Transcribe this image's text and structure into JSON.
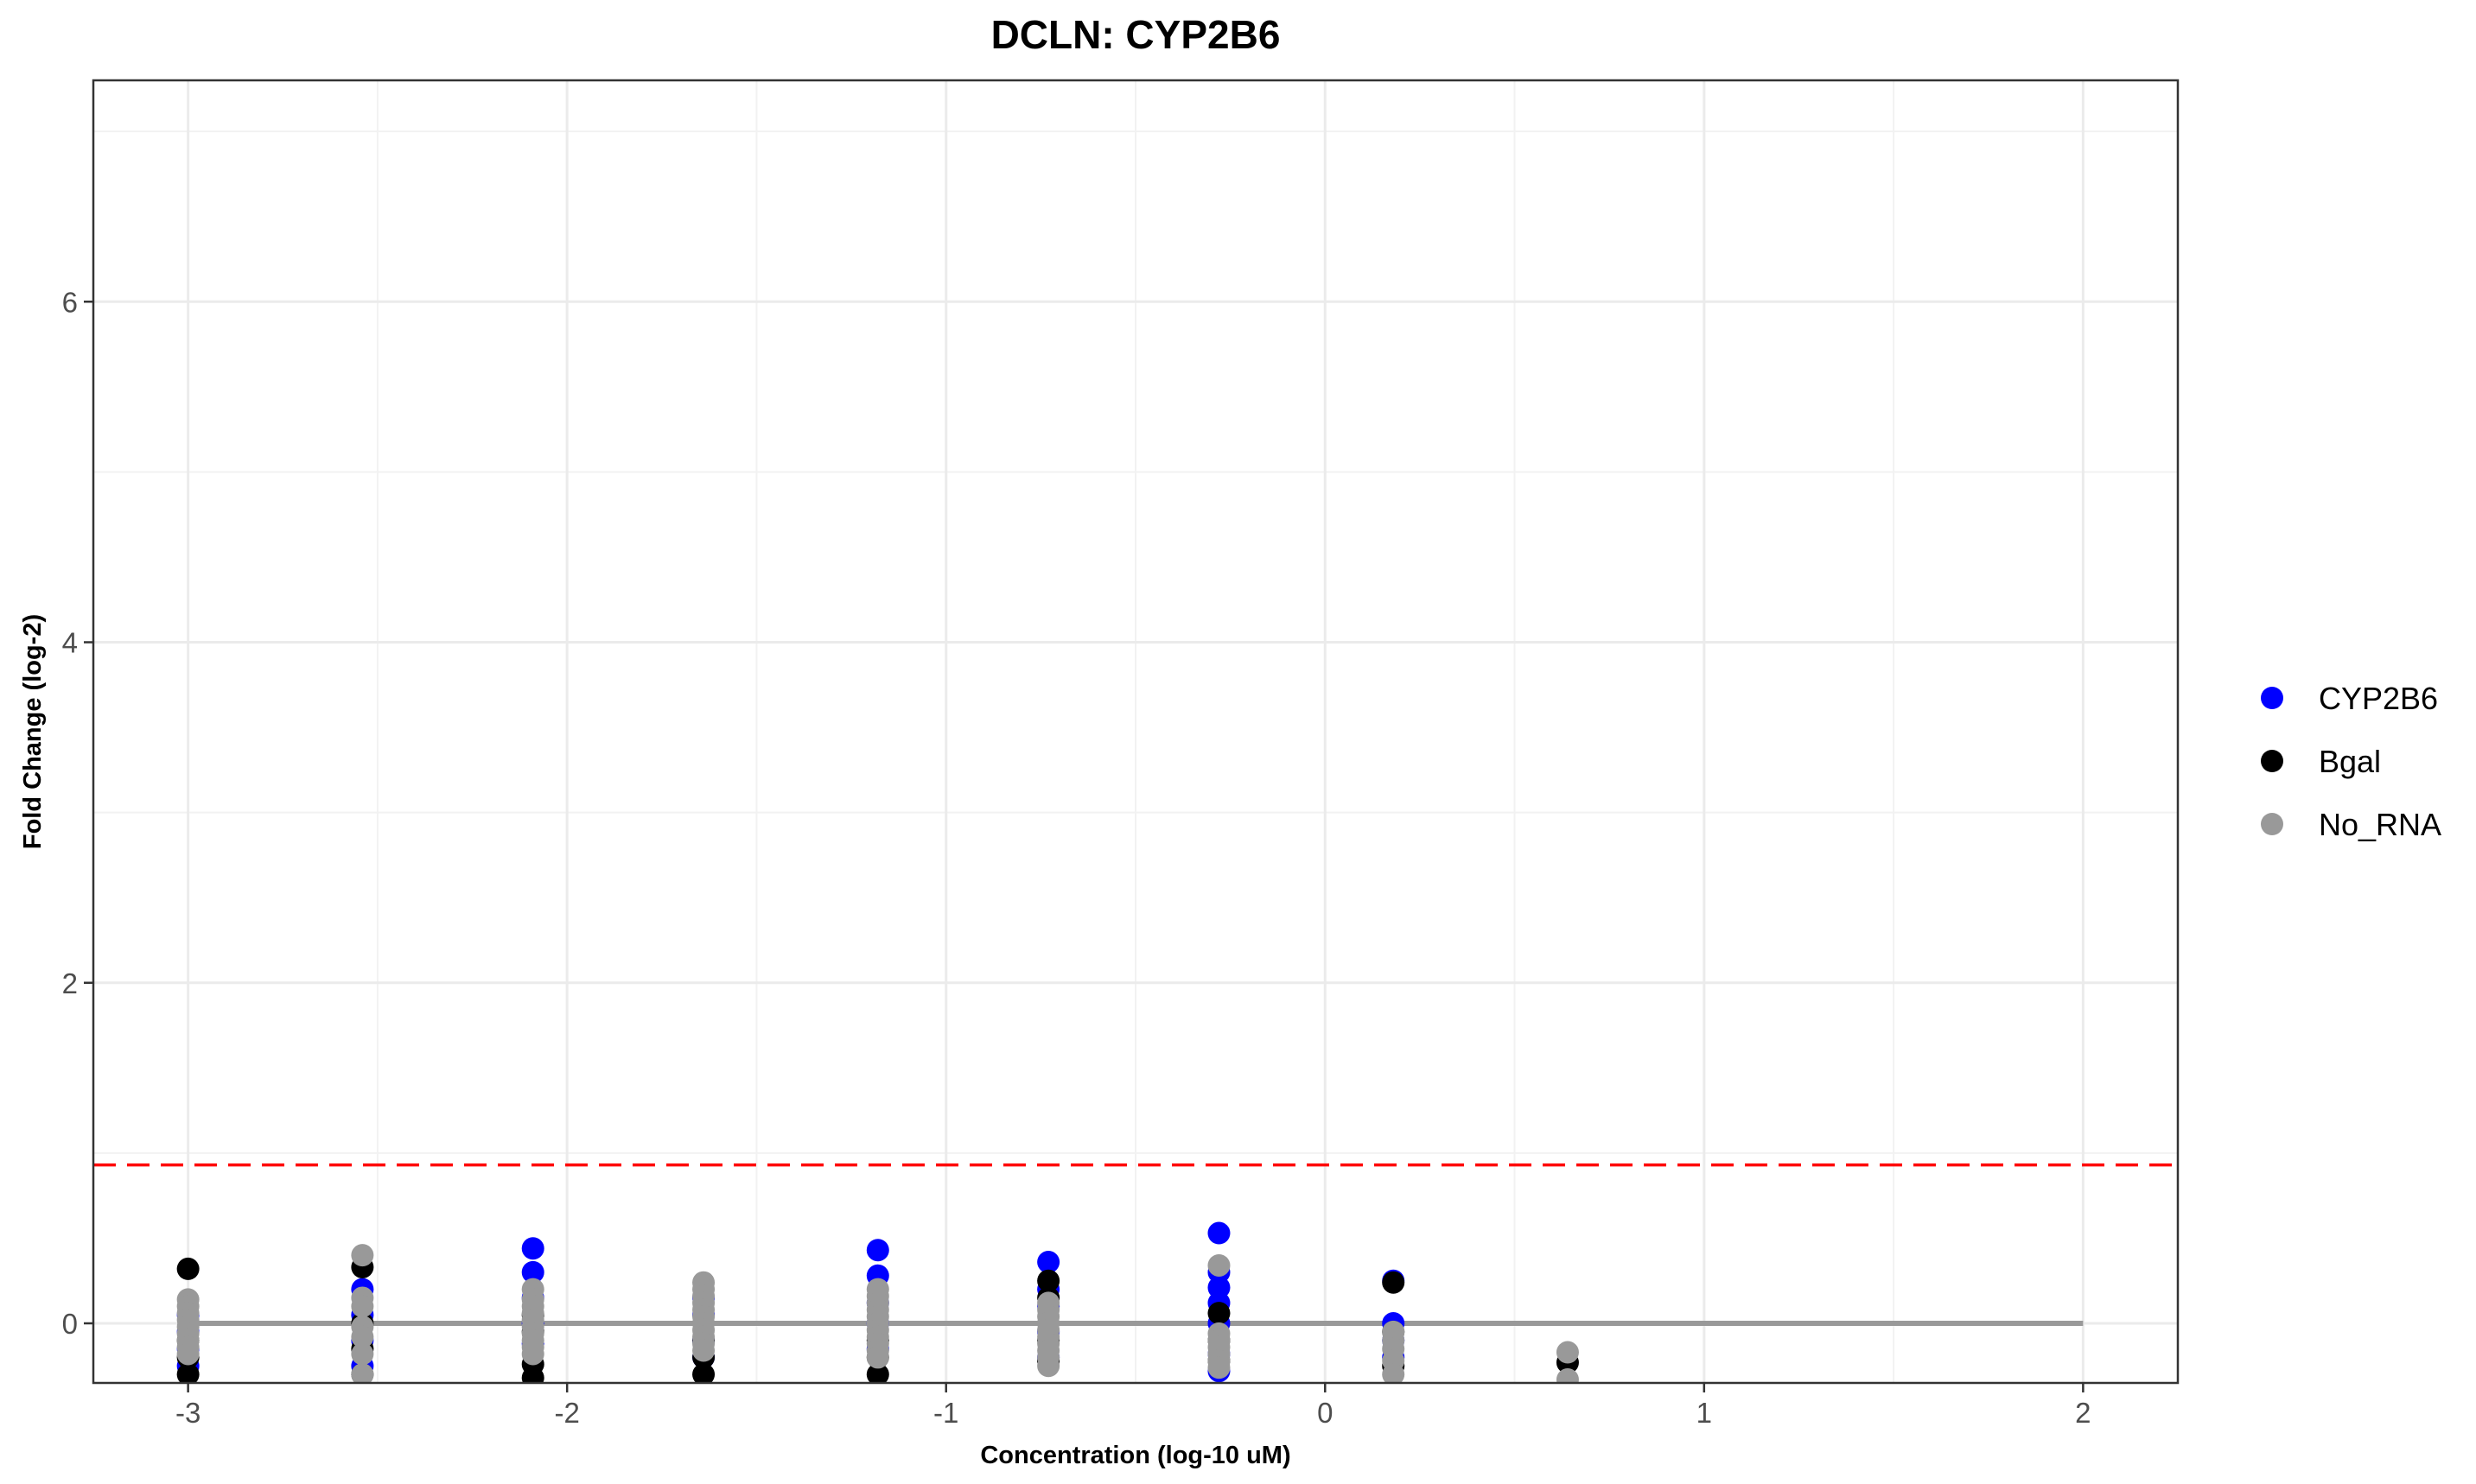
{
  "chart_data": {
    "type": "scatter",
    "title": "DCLN: CYP2B6",
    "xlabel": "Concentration (log-10 uM)",
    "ylabel": "Fold Change (log-2)",
    "xlim": [
      -3.25,
      2.25
    ],
    "ylim": [
      -0.35,
      7.3
    ],
    "x_ticks": [
      -3,
      -2,
      -1,
      0,
      1,
      2
    ],
    "y_ticks": [
      0,
      2,
      4,
      6
    ],
    "grid": true,
    "legend_position": "right",
    "threshold": {
      "y": 0.93,
      "color": "#ff0000",
      "style": "dashed"
    },
    "fit_line": {
      "x": [
        -3,
        2
      ],
      "y": [
        0,
        0
      ],
      "color": "#999999"
    },
    "series": [
      {
        "name": "CYP2B6",
        "color": "#0000ff",
        "points": [
          [
            -3,
            0.05
          ],
          [
            -3,
            -0.05
          ],
          [
            -3,
            -0.15
          ],
          [
            -3,
            -0.25
          ],
          [
            -2.54,
            0.2
          ],
          [
            -2.54,
            0.05
          ],
          [
            -2.54,
            -0.1
          ],
          [
            -2.54,
            -0.25
          ],
          [
            -2.09,
            0.44
          ],
          [
            -2.09,
            0.3
          ],
          [
            -2.09,
            0.15
          ],
          [
            -2.09,
            0.0
          ],
          [
            -2.09,
            -0.12
          ],
          [
            -1.64,
            0.15
          ],
          [
            -1.64,
            0.05
          ],
          [
            -1.64,
            -0.1
          ],
          [
            -1.64,
            -0.2
          ],
          [
            -1.18,
            0.43
          ],
          [
            -1.18,
            0.28
          ],
          [
            -1.18,
            0.12
          ],
          [
            -1.18,
            0.0
          ],
          [
            -1.18,
            -0.15
          ],
          [
            -0.73,
            0.36
          ],
          [
            -0.73,
            0.2
          ],
          [
            -0.73,
            0.1
          ],
          [
            -0.73,
            -0.05
          ],
          [
            -0.73,
            -0.2
          ],
          [
            -0.28,
            0.53
          ],
          [
            -0.28,
            0.3
          ],
          [
            -0.28,
            0.21
          ],
          [
            -0.28,
            0.12
          ],
          [
            -0.28,
            0.0
          ],
          [
            -0.28,
            -0.18
          ],
          [
            -0.28,
            -0.28
          ],
          [
            0.18,
            0.25
          ],
          [
            0.18,
            0.0
          ],
          [
            0.18,
            -0.1
          ],
          [
            0.18,
            -0.2
          ]
        ]
      },
      {
        "name": "Bgal",
        "color": "#000000",
        "points": [
          [
            -3,
            0.32
          ],
          [
            -3,
            -0.1
          ],
          [
            -3,
            -0.2
          ],
          [
            -3,
            -0.3
          ],
          [
            -2.54,
            0.33
          ],
          [
            -2.54,
            0.0
          ],
          [
            -2.54,
            -0.15
          ],
          [
            -2.54,
            -0.3
          ],
          [
            -2.09,
            0.05
          ],
          [
            -2.09,
            -0.05
          ],
          [
            -2.09,
            -0.24
          ],
          [
            -2.09,
            -0.32
          ],
          [
            -1.64,
            -0.1
          ],
          [
            -1.64,
            -0.2
          ],
          [
            -1.64,
            -0.3
          ],
          [
            -1.18,
            -0.1
          ],
          [
            -1.18,
            -0.2
          ],
          [
            -1.18,
            -0.3
          ],
          [
            -0.73,
            0.25
          ],
          [
            -0.73,
            0.15
          ],
          [
            -0.73,
            -0.1
          ],
          [
            -0.73,
            -0.22
          ],
          [
            -0.28,
            0.06
          ],
          [
            -0.28,
            -0.1
          ],
          [
            -0.28,
            -0.22
          ],
          [
            0.18,
            0.24
          ],
          [
            0.18,
            -0.05
          ],
          [
            0.18,
            -0.25
          ],
          [
            0.64,
            -0.23
          ]
        ]
      },
      {
        "name": "No_RNA",
        "color": "#999999",
        "points": [
          [
            -3,
            0.14
          ],
          [
            -3,
            0.1
          ],
          [
            -3,
            0.06
          ],
          [
            -3,
            0.02
          ],
          [
            -3,
            -0.02
          ],
          [
            -3,
            -0.06
          ],
          [
            -3,
            -0.1
          ],
          [
            -3,
            -0.14
          ],
          [
            -3,
            -0.18
          ],
          [
            -2.54,
            0.4
          ],
          [
            -2.54,
            0.15
          ],
          [
            -2.54,
            0.1
          ],
          [
            -2.54,
            -0.02
          ],
          [
            -2.54,
            -0.08
          ],
          [
            -2.54,
            -0.18
          ],
          [
            -2.54,
            -0.3
          ],
          [
            -2.09,
            0.2
          ],
          [
            -2.09,
            0.14
          ],
          [
            -2.09,
            0.1
          ],
          [
            -2.09,
            0.06
          ],
          [
            -2.09,
            0.02
          ],
          [
            -2.09,
            -0.02
          ],
          [
            -2.09,
            -0.06
          ],
          [
            -2.09,
            -0.1
          ],
          [
            -2.09,
            -0.14
          ],
          [
            -2.09,
            -0.18
          ],
          [
            -1.64,
            0.24
          ],
          [
            -1.64,
            0.2
          ],
          [
            -1.64,
            0.16
          ],
          [
            -1.64,
            0.12
          ],
          [
            -1.64,
            0.08
          ],
          [
            -1.64,
            0.04
          ],
          [
            -1.64,
            0.0
          ],
          [
            -1.64,
            -0.04
          ],
          [
            -1.64,
            -0.08
          ],
          [
            -1.64,
            -0.12
          ],
          [
            -1.64,
            -0.16
          ],
          [
            -1.18,
            0.2
          ],
          [
            -1.18,
            0.16
          ],
          [
            -1.18,
            0.12
          ],
          [
            -1.18,
            0.08
          ],
          [
            -1.18,
            0.04
          ],
          [
            -1.18,
            0.0
          ],
          [
            -1.18,
            -0.04
          ],
          [
            -1.18,
            -0.08
          ],
          [
            -1.18,
            -0.12
          ],
          [
            -1.18,
            -0.16
          ],
          [
            -1.18,
            -0.2
          ],
          [
            -0.73,
            0.12
          ],
          [
            -0.73,
            0.08
          ],
          [
            -0.73,
            0.04
          ],
          [
            -0.73,
            0.0
          ],
          [
            -0.73,
            -0.04
          ],
          [
            -0.73,
            -0.08
          ],
          [
            -0.73,
            -0.12
          ],
          [
            -0.73,
            -0.16
          ],
          [
            -0.73,
            -0.2
          ],
          [
            -0.73,
            -0.25
          ],
          [
            -0.28,
            0.34
          ],
          [
            -0.28,
            -0.06
          ],
          [
            -0.28,
            -0.1
          ],
          [
            -0.28,
            -0.14
          ],
          [
            -0.28,
            -0.18
          ],
          [
            -0.28,
            -0.22
          ],
          [
            -0.28,
            -0.26
          ],
          [
            0.18,
            -0.05
          ],
          [
            0.18,
            -0.1
          ],
          [
            0.18,
            -0.15
          ],
          [
            0.18,
            -0.22
          ],
          [
            0.18,
            -0.3
          ],
          [
            0.64,
            -0.17
          ],
          [
            0.64,
            -0.33
          ]
        ]
      }
    ]
  }
}
